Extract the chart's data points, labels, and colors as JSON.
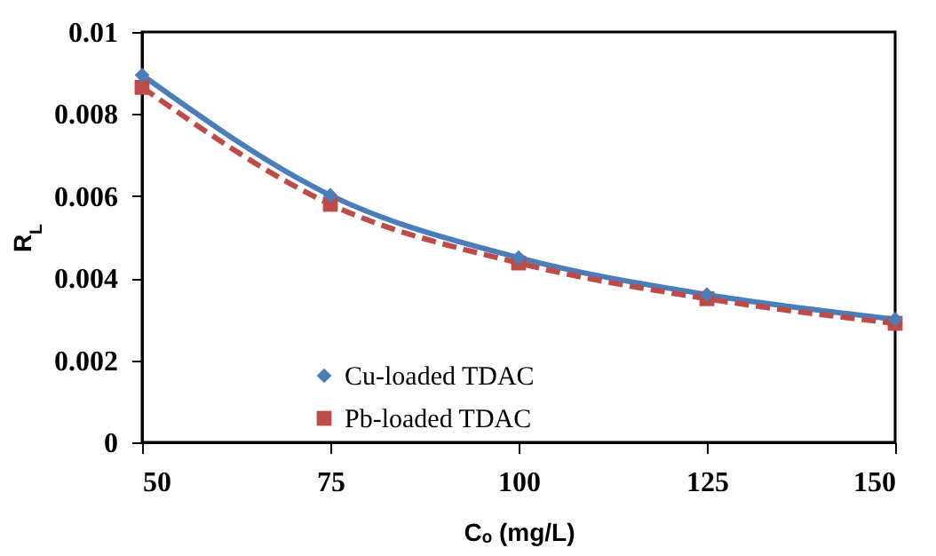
{
  "chart_data": {
    "type": "line",
    "xlabel": "Cₒ (mg/L)",
    "ylabel": "R$_{L}$",
    "x": [
      50,
      75,
      100,
      125,
      150
    ],
    "series": [
      {
        "name": "Cu-loaded TDAC",
        "color": "#4a7ebb",
        "values": [
          0.00895,
          0.00602,
          0.0045,
          0.0036,
          0.003
        ],
        "marker": "diamond",
        "line_style": "solid"
      },
      {
        "name": "Pb-loaded TDAC",
        "color": "#be4b48",
        "values": [
          0.00865,
          0.0058,
          0.00437,
          0.0035,
          0.0029
        ],
        "marker": "square",
        "line_style": "dashed"
      }
    ],
    "xlim": [
      50,
      150
    ],
    "xticks": [
      50,
      75,
      100,
      125,
      150
    ],
    "ylim": [
      0,
      0.01
    ],
    "yticks": [
      0,
      0.002,
      0.004,
      0.006,
      0.008,
      0.01
    ],
    "grid": false,
    "legend": "bottom left"
  }
}
